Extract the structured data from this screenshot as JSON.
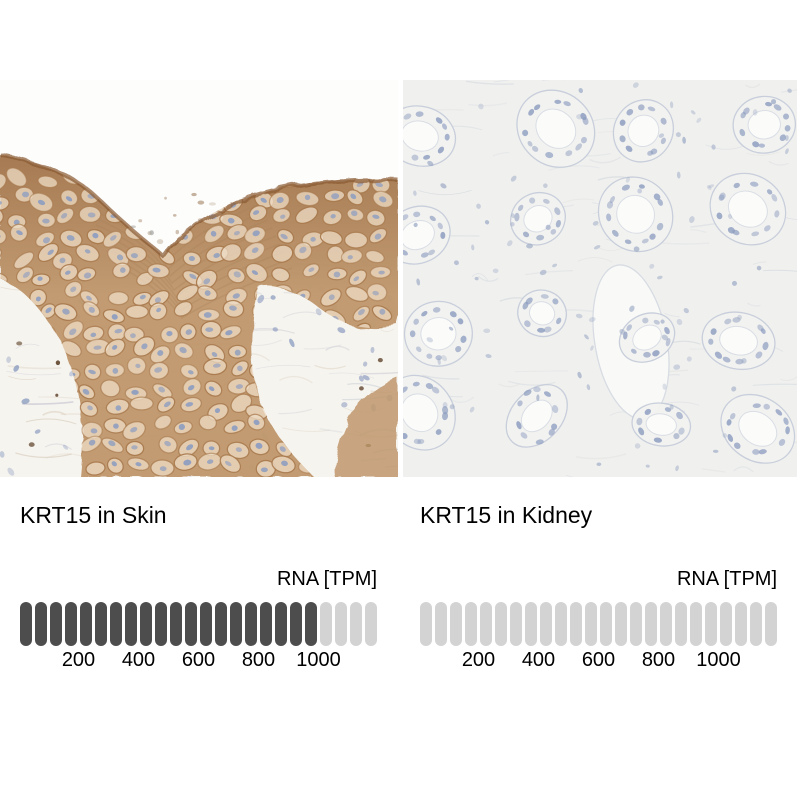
{
  "colors": {
    "filled_segment": "#4d4d4d",
    "empty_segment": "#d3d3d3",
    "text": "#000000",
    "background": "#ffffff",
    "skin_bg": "#f6f4ef",
    "skin_stain_brown": "#c0986d",
    "skin_rim_brown": "#8a5a33",
    "kidney_bg": "#f0f0ee",
    "nuclei_blue": "#8d9dc0"
  },
  "panels": [
    {
      "id": "skin",
      "title": "KRT15 in Skin",
      "image_name": "skin-ihc-micrograph",
      "meter": {
        "label": "RNA [TPM]",
        "total_segments": 24,
        "filled_segments": 20,
        "tpm_per_segment": 50,
        "value_tpm": 1000,
        "ticks": [
          "200",
          "400",
          "600",
          "800",
          "1000"
        ]
      }
    },
    {
      "id": "kidney",
      "title": "KRT15 in Kidney",
      "image_name": "kidney-ihc-micrograph",
      "meter": {
        "label": "RNA [TPM]",
        "total_segments": 24,
        "filled_segments": 0,
        "tpm_per_segment": 50,
        "value_tpm": 0,
        "ticks": [
          "200",
          "400",
          "600",
          "800",
          "1000"
        ]
      }
    }
  ],
  "chart_data": [
    {
      "type": "bar",
      "title": "KRT15 in Skin",
      "unit": "RNA [TPM]",
      "value": 1000,
      "axis_min": 0,
      "axis_max": 1200,
      "tick_values": [
        200,
        400,
        600,
        800,
        1000
      ],
      "segments_total": 24,
      "segments_filled": 20,
      "legend": "none",
      "grid": false
    },
    {
      "type": "bar",
      "title": "KRT15 in Kidney",
      "unit": "RNA [TPM]",
      "value": 0,
      "axis_min": 0,
      "axis_max": 1200,
      "tick_values": [
        200,
        400,
        600,
        800,
        1000
      ],
      "segments_total": 24,
      "segments_filled": 0,
      "legend": "none",
      "grid": false
    }
  ]
}
